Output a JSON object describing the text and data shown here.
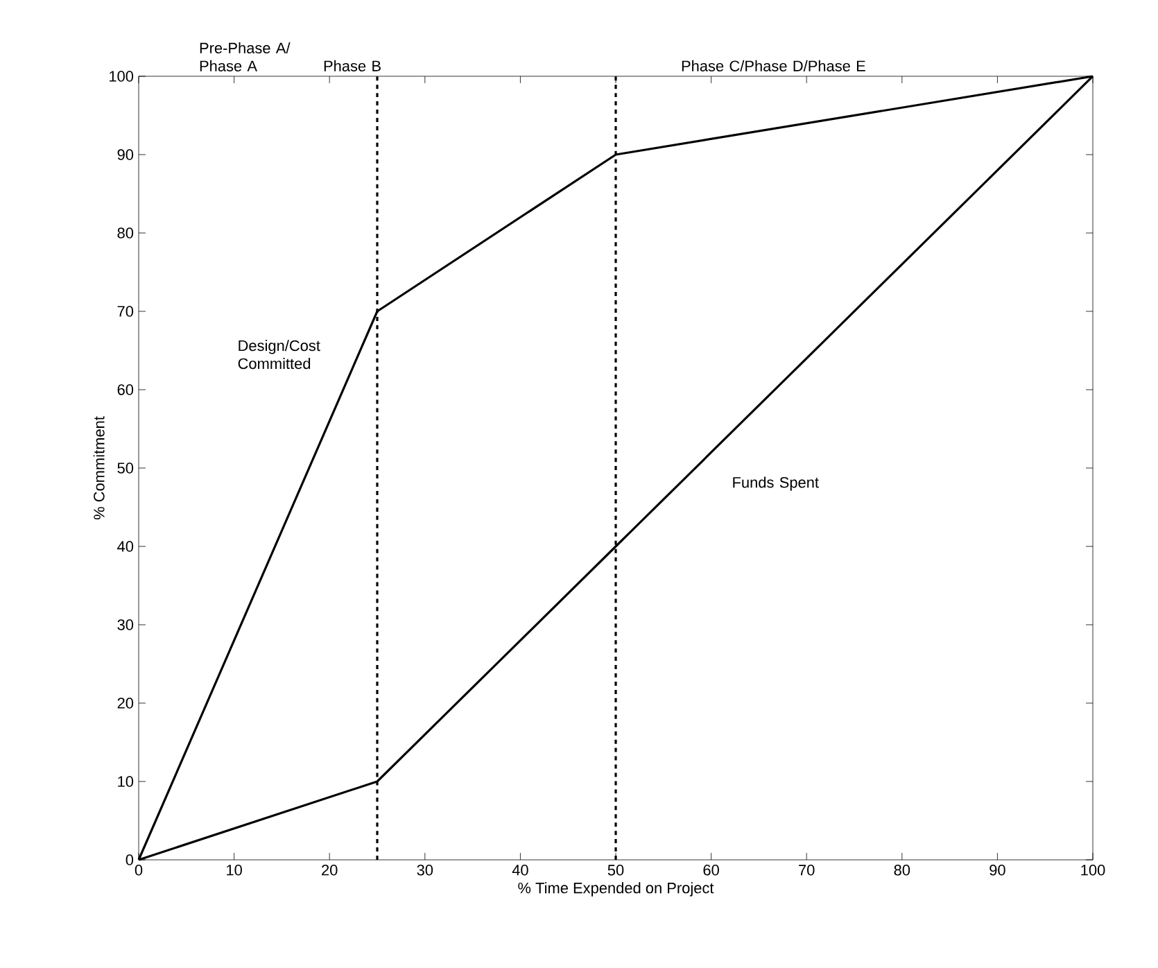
{
  "chart_data": {
    "type": "line",
    "xlabel": "% Time Expended on Project",
    "ylabel": "% Commitment",
    "x": [
      0,
      25,
      50,
      100
    ],
    "series": [
      {
        "name": "Design/Cost Committed",
        "color": "#000000",
        "values": [
          0,
          70,
          90,
          100
        ]
      },
      {
        "name": "Funds Spent",
        "color": "#000000",
        "values": [
          0,
          10,
          40,
          100
        ]
      }
    ],
    "xlim": [
      0,
      100
    ],
    "ylim": [
      0,
      100
    ],
    "xticks": [
      0,
      10,
      20,
      30,
      40,
      50,
      60,
      70,
      80,
      90,
      100
    ],
    "yticks": [
      0,
      10,
      20,
      30,
      40,
      50,
      60,
      70,
      80,
      90,
      100
    ],
    "ref_lines": [
      {
        "axis": "x",
        "value": 25,
        "line_style": "dashed",
        "color": "#000000"
      },
      {
        "axis": "x",
        "value": 50,
        "line_style": "dashed",
        "color": "#000000"
      }
    ],
    "annotations": [
      "Pre-Phase A/ Phase A",
      "Phase B",
      "Phase C/Phase D/Phase E"
    ],
    "marker": "none",
    "line_style": "solid"
  }
}
